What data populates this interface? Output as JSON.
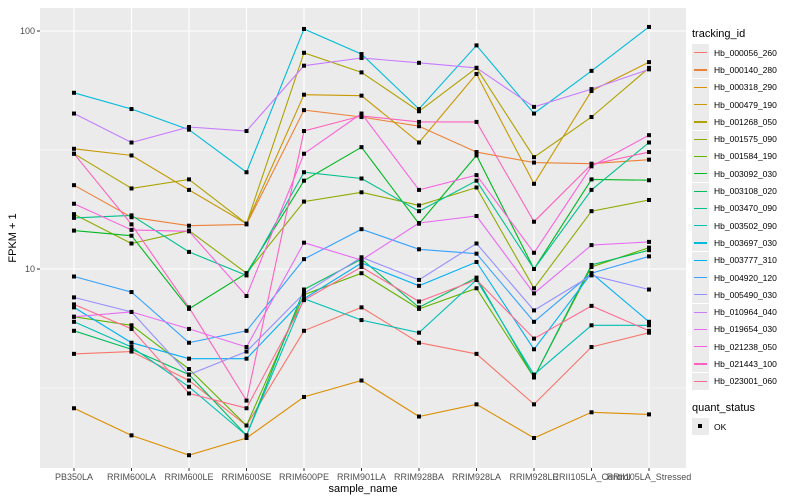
{
  "chart_data": {
    "type": "line",
    "title": "",
    "xlabel": "sample_name",
    "ylabel": "FPKM + 1",
    "yscale": "log10",
    "ylim": [
      1.6,
      130
    ],
    "yticks": [
      {
        "value": 10,
        "label": "10"
      },
      {
        "value": 100,
        "label": "100"
      }
    ],
    "grid": true,
    "legend_position": "right",
    "categories": [
      "PB350LA",
      "RRIM600LA",
      "RRIM600LE",
      "RRIM600SE",
      "RRIM600PE",
      "RRIM901LA",
      "RRIM928BA",
      "RRIM928LA",
      "RRIM928LE",
      "RRII105LA_Control",
      "RRII105LA_Stressed"
    ],
    "legend": {
      "title": "tracking_id",
      "shape_title": "quant_status",
      "shape_items": [
        "OK"
      ]
    },
    "series": [
      {
        "name": "Hb_000056_260",
        "color": "#F8766D",
        "values": [
          4.4,
          4.5,
          3.4,
          2.2,
          5.5,
          6.9,
          4.9,
          4.4,
          2.7,
          4.7,
          5.4
        ]
      },
      {
        "name": "Hb_000140_280",
        "color": "#EC8239",
        "values": [
          22.5,
          16.5,
          15.2,
          15.4,
          46.5,
          43.5,
          39.8,
          31.0,
          28.0,
          27.7,
          28.8
        ]
      },
      {
        "name": "Hb_000318_290",
        "color": "#DB8E00",
        "values": [
          2.6,
          2.0,
          1.65,
          1.95,
          2.9,
          3.4,
          2.4,
          2.7,
          1.95,
          2.5,
          2.45
        ]
      },
      {
        "name": "Hb_000479_190",
        "color": "#C79800",
        "values": [
          32.0,
          30.0,
          21.5,
          15.5,
          54.0,
          53.5,
          34.0,
          66.0,
          22.8,
          56.0,
          74.0
        ]
      },
      {
        "name": "Hb_001268_050",
        "color": "#AEA200",
        "values": [
          30.5,
          21.8,
          23.8,
          15.5,
          81.0,
          67.0,
          46.0,
          70.0,
          29.5,
          43.5,
          70.0
        ]
      },
      {
        "name": "Hb_001575_090",
        "color": "#8FAA00",
        "values": [
          17.0,
          12.8,
          14.5,
          9.6,
          19.2,
          21.0,
          18.5,
          22.0,
          8.3,
          17.5,
          19.5
        ]
      },
      {
        "name": "Hb_001584_190",
        "color": "#64B200",
        "values": [
          6.3,
          5.8,
          3.8,
          2.2,
          7.8,
          9.6,
          6.8,
          8.3,
          3.5,
          10.2,
          12.3
        ]
      },
      {
        "name": "Hb_003092_030",
        "color": "#00B81F",
        "values": [
          14.5,
          13.8,
          6.8,
          9.6,
          23.5,
          32.5,
          15.5,
          30.0,
          10.0,
          23.8,
          23.6
        ]
      },
      {
        "name": "Hb_003108_020",
        "color": "#00BD5C",
        "values": [
          5.5,
          4.6,
          3.6,
          2.0,
          8.2,
          11.0,
          6.9,
          9.2,
          3.5,
          10.4,
          12.0
        ]
      },
      {
        "name": "Hb_003470_090",
        "color": "#00C08E",
        "values": [
          16.4,
          16.8,
          11.8,
          9.4,
          25.5,
          24.0,
          17.5,
          23.5,
          10.0,
          21.5,
          34.0
        ]
      },
      {
        "name": "Hb_003502_090",
        "color": "#00BFB5",
        "values": [
          6.0,
          4.7,
          3.2,
          2.0,
          7.5,
          6.1,
          5.4,
          9.0,
          3.6,
          5.8,
          5.8
        ]
      },
      {
        "name": "Hb_003697_030",
        "color": "#00BBDA",
        "values": [
          55.0,
          47.0,
          38.5,
          25.5,
          102.0,
          80.0,
          47.0,
          87.0,
          45.0,
          68.0,
          104.0
        ]
      },
      {
        "name": "Hb_003777_310",
        "color": "#00B0F6",
        "values": [
          6.9,
          4.9,
          4.2,
          4.2,
          7.5,
          10.6,
          8.5,
          10.7,
          4.6,
          9.6,
          6.0
        ]
      },
      {
        "name": "Hb_004920_120",
        "color": "#35A2FF",
        "values": [
          9.3,
          8.0,
          4.9,
          5.5,
          11.0,
          14.7,
          12.1,
          11.6,
          6.0,
          9.6,
          11.3
        ]
      },
      {
        "name": "Hb_005490_030",
        "color": "#9590FF",
        "values": [
          7.6,
          6.6,
          3.6,
          4.5,
          7.9,
          11.2,
          9.0,
          12.8,
          6.7,
          9.4,
          8.2
        ]
      },
      {
        "name": "Hb_010964_040",
        "color": "#C77CFF",
        "values": [
          45.0,
          34.0,
          39.5,
          38.0,
          71.5,
          77.0,
          73.5,
          70.0,
          48.0,
          57.0,
          69.0
        ]
      },
      {
        "name": "Hb_019654_030",
        "color": "#E76BF3",
        "values": [
          6.3,
          6.6,
          5.6,
          4.7,
          12.9,
          10.9,
          15.6,
          16.7,
          7.9,
          12.6,
          13.0
        ]
      },
      {
        "name": "Hb_021238_050",
        "color": "#FA62DB",
        "values": [
          18.8,
          14.6,
          14.4,
          7.7,
          30.5,
          45.0,
          21.5,
          24.8,
          11.7,
          27.0,
          36.5
        ]
      },
      {
        "name": "Hb_021443_100",
        "color": "#FF62BC",
        "values": [
          30.5,
          15.4,
          6.9,
          2.8,
          38.0,
          44.0,
          41.5,
          41.5,
          15.8,
          27.5,
          31.0
        ]
      },
      {
        "name": "Hb_023001_060",
        "color": "#FF6C91",
        "values": [
          7.1,
          5.6,
          3.0,
          2.6,
          7.4,
          10.2,
          7.3,
          9.0,
          5.1,
          7.0,
          5.5
        ]
      }
    ]
  }
}
